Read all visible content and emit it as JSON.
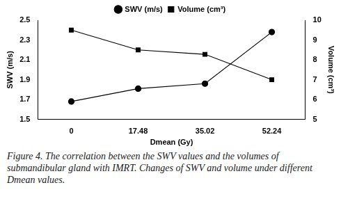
{
  "chart_data": {
    "type": "line",
    "caption": "Figure 4. The correlation between the SWV values and the volumes of submandibular gland with IMRT. Changes of SWV and volume under different Dmean values.",
    "x_label": "Dmean (Gy)",
    "y_label": "SWV (m/s)",
    "y2_label": "Volume (cm³)",
    "categories": [
      "0",
      "17.48",
      "35.02",
      "52.24"
    ],
    "series": [
      {
        "name": "SWV (m/s)",
        "color": "#000000",
        "marker": "circle",
        "values": [
          1.68,
          1.81,
          1.86,
          2.38
        ]
      },
      {
        "name": "Volume (cm³)",
        "color": "#000000",
        "marker": "square",
        "axis": "y2",
        "values": [
          9.5,
          8.5,
          8.28,
          7.0
        ]
      }
    ],
    "ylim": [
      1.5,
      2.5
    ],
    "yticks": [
      1.5,
      1.7,
      1.9,
      2.1,
      2.3,
      2.5
    ],
    "y2lim": [
      5,
      10
    ],
    "y2ticks": [
      5,
      6,
      7,
      8,
      9,
      10
    ],
    "grid": false,
    "legend": "top"
  }
}
